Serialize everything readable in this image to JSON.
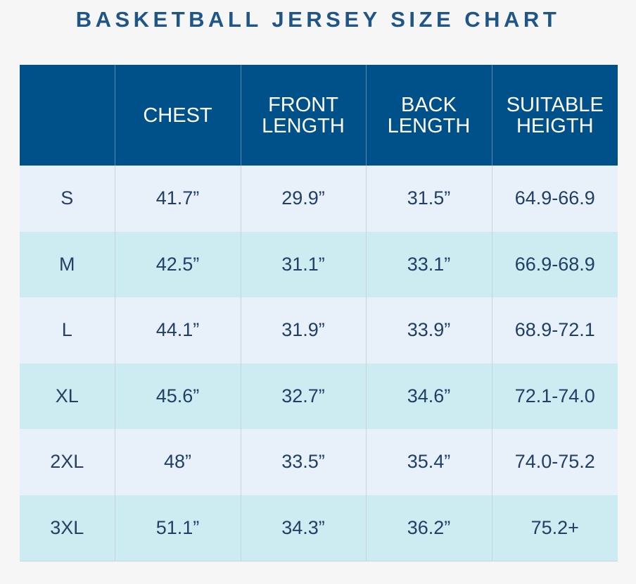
{
  "title": "BASKETBALL JERSEY SIZE CHART",
  "table": {
    "headers": [
      [],
      [
        "CHEST"
      ],
      [
        "FRONT",
        "LENGTH"
      ],
      [
        "BACK",
        "LENGTH"
      ],
      [
        "SUITABLE",
        "HEIGTH"
      ]
    ],
    "rows": [
      {
        "size": "S",
        "chest": "41.7”",
        "front_length": "29.9”",
        "back_length": "31.5”",
        "suitable_height": "64.9-66.9"
      },
      {
        "size": "M",
        "chest": "42.5”",
        "front_length": "31.1”",
        "back_length": "33.1”",
        "suitable_height": "66.9-68.9"
      },
      {
        "size": "L",
        "chest": "44.1”",
        "front_length": "31.9”",
        "back_length": "33.9”",
        "suitable_height": "68.9-72.1"
      },
      {
        "size": "XL",
        "chest": "45.6”",
        "front_length": "32.7”",
        "back_length": "34.6”",
        "suitable_height": "72.1-74.0"
      },
      {
        "size": "2XL",
        "chest": "48”",
        "front_length": "33.5”",
        "back_length": "35.4”",
        "suitable_height": "74.0-75.2"
      },
      {
        "size": "3XL",
        "chest": "51.1”",
        "front_length": "34.3”",
        "back_length": "36.2”",
        "suitable_height": "75.2+"
      }
    ]
  },
  "colors": {
    "title": "#1f5587",
    "header_bg": "#00508a",
    "header_text": "#ffffff",
    "row_light": "#e8f1f9",
    "row_teal": "#cdecf2",
    "cell_text": "#213f66"
  }
}
